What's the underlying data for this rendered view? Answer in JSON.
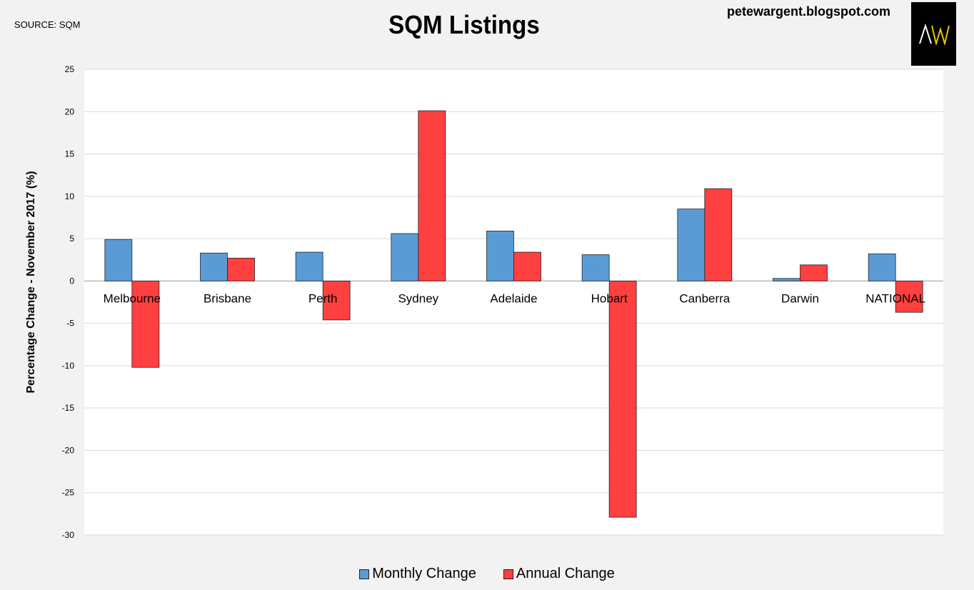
{
  "header": {
    "source": "SOURCE: SQM",
    "site": "petewargent.blogspot.com",
    "logo_icon": "aw-logo-icon"
  },
  "chart_data": {
    "type": "bar",
    "title": "SQM Listings",
    "xlabel": "",
    "ylabel": "Percentage Change - November 2017 (%)",
    "ylim": [
      -30,
      25
    ],
    "yticks": [
      25,
      20,
      15,
      10,
      5,
      0,
      -5,
      -10,
      -15,
      -20,
      -25,
      -30
    ],
    "grid": true,
    "legend_position": "bottom",
    "categories": [
      "Melbourne",
      "Brisbane",
      "Perth",
      "Sydney",
      "Adelaide",
      "Hobart",
      "Canberra",
      "Darwin",
      "NATIONAL"
    ],
    "series": [
      {
        "name": "Monthly Change",
        "color": "#5b9bd5",
        "values": [
          4.9,
          3.3,
          3.4,
          5.6,
          5.9,
          3.1,
          8.5,
          0.3,
          3.2
        ]
      },
      {
        "name": "Annual Change",
        "color": "#ff4040",
        "values": [
          -10.2,
          2.7,
          -4.6,
          20.1,
          3.4,
          -27.9,
          10.9,
          1.9,
          -3.7
        ]
      }
    ]
  }
}
